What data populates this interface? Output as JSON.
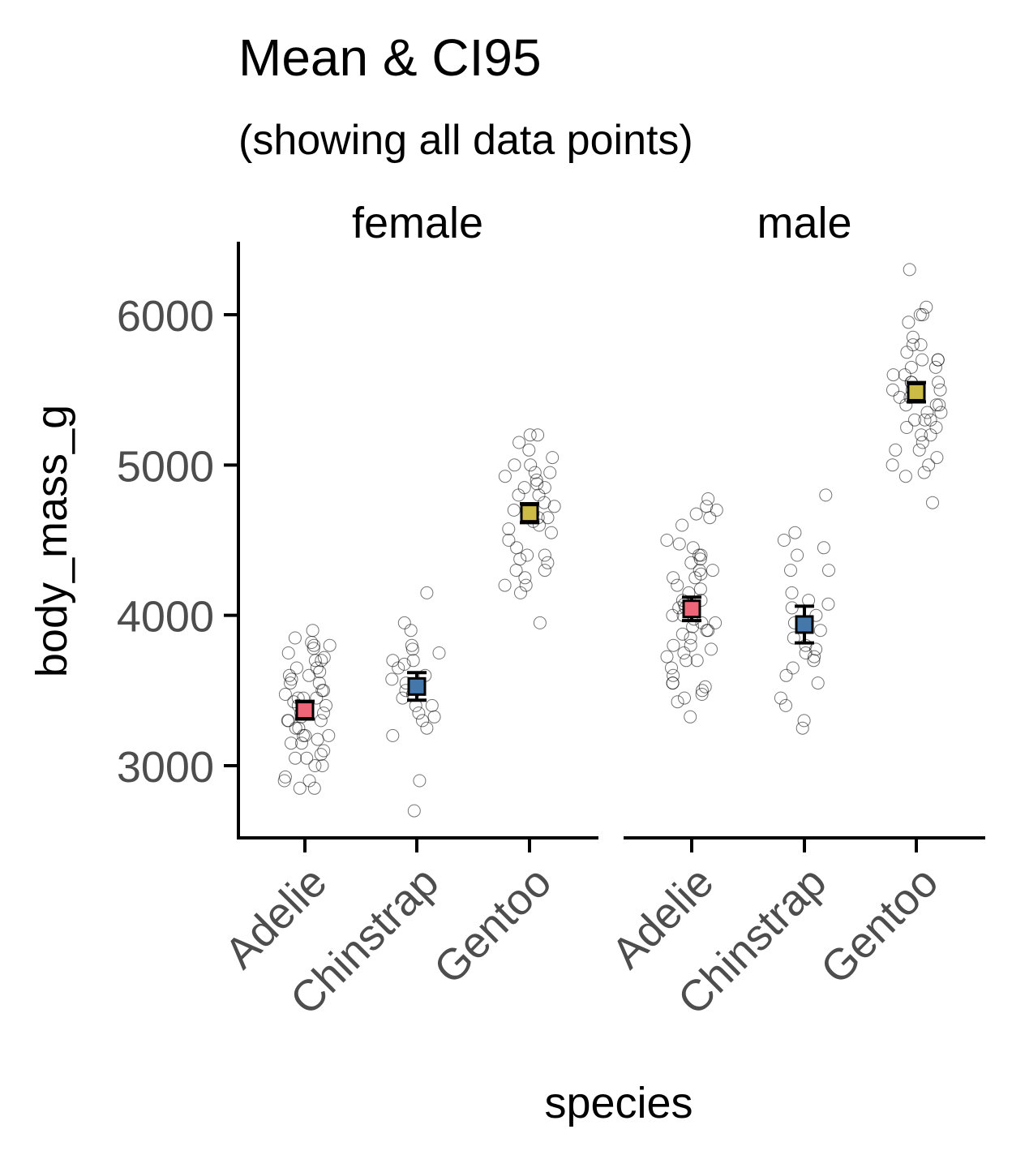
{
  "chart_data": {
    "type": "scatter",
    "title": "Mean & CI95",
    "subtitle": "(showing all data points)",
    "xlabel": "species",
    "ylabel": "body_mass_g",
    "ylim": [
      2500,
      6500
    ],
    "yticks": [
      3000,
      4000,
      5000,
      6000
    ],
    "categories": [
      "Adelie",
      "Chinstrap",
      "Gentoo"
    ],
    "category_colors": {
      "Adelie": "#ee6677",
      "Chinstrap": "#4477aa",
      "Gentoo": "#ccbb44"
    },
    "grid": false,
    "legend": "none",
    "panels": [
      {
        "facet": "female",
        "summary": [
          {
            "species": "Adelie",
            "mean": 3369,
            "ci_low": 3310,
            "ci_high": 3428
          },
          {
            "species": "Chinstrap",
            "mean": 3527,
            "ci_low": 3436,
            "ci_high": 3619
          },
          {
            "species": "Gentoo",
            "mean": 4680,
            "ci_low": 4617,
            "ci_high": 4743
          }
        ],
        "points": {
          "Adelie": [
            3900,
            3850,
            3820,
            3800,
            3800,
            3780,
            3750,
            3720,
            3700,
            3700,
            3650,
            3650,
            3625,
            3600,
            3600,
            3575,
            3550,
            3550,
            3500,
            3500,
            3475,
            3450,
            3450,
            3450,
            3425,
            3400,
            3400,
            3350,
            3350,
            3325,
            3300,
            3300,
            3300,
            3250,
            3250,
            3200,
            3200,
            3200,
            3175,
            3150,
            3150,
            3100,
            3075,
            3050,
            3050,
            3000,
            3000,
            2925,
            2900,
            2900,
            2850,
            2850
          ],
          "Chinstrap": [
            4150,
            3950,
            3900,
            3800,
            3775,
            3750,
            3700,
            3700,
            3675,
            3650,
            3600,
            3575,
            3550,
            3500,
            3475,
            3450,
            3400,
            3400,
            3350,
            3325,
            3300,
            3250,
            3200,
            2900,
            2700
          ],
          "Gentoo": [
            5200,
            5200,
            5150,
            5100,
            5050,
            5000,
            5000,
            4950,
            4950,
            4925,
            4900,
            4875,
            4850,
            4850,
            4800,
            4800,
            4750,
            4725,
            4700,
            4700,
            4675,
            4650,
            4650,
            4625,
            4600,
            4575,
            4550,
            4500,
            4450,
            4400,
            4400,
            4375,
            4350,
            4300,
            4300,
            4250,
            4200,
            4200,
            4150,
            3950
          ]
        }
      },
      {
        "facet": "male",
        "summary": [
          {
            "species": "Adelie",
            "mean": 4043,
            "ci_low": 3965,
            "ci_high": 4121
          },
          {
            "species": "Chinstrap",
            "mean": 3939,
            "ci_low": 3817,
            "ci_high": 4061
          },
          {
            "species": "Gentoo",
            "mean": 5485,
            "ci_low": 5420,
            "ci_high": 5549
          }
        ],
        "points": {
          "Adelie": [
            4775,
            4725,
            4700,
            4675,
            4650,
            4600,
            4500,
            4475,
            4450,
            4400,
            4400,
            4375,
            4350,
            4300,
            4300,
            4275,
            4250,
            4250,
            4200,
            4175,
            4150,
            4100,
            4100,
            4075,
            4050,
            4050,
            4000,
            4000,
            3975,
            3950,
            3950,
            3925,
            3900,
            3900,
            3875,
            3850,
            3800,
            3800,
            3775,
            3750,
            3725,
            3700,
            3700,
            3650,
            3600,
            3550,
            3550,
            3525,
            3500,
            3475,
            3450,
            3425,
            3325
          ],
          "Chinstrap": [
            4800,
            4550,
            4500,
            4450,
            4400,
            4300,
            4300,
            4150,
            4100,
            4075,
            4050,
            4000,
            3950,
            3900,
            3850,
            3800,
            3775,
            3750,
            3725,
            3700,
            3650,
            3600,
            3550,
            3450,
            3400,
            3300,
            3250
          ],
          "Gentoo": [
            6300,
            6050,
            6000,
            6000,
            5950,
            5850,
            5800,
            5800,
            5750,
            5700,
            5700,
            5700,
            5650,
            5650,
            5600,
            5600,
            5550,
            5550,
            5550,
            5500,
            5500,
            5500,
            5450,
            5450,
            5400,
            5400,
            5400,
            5350,
            5350,
            5300,
            5300,
            5300,
            5250,
            5250,
            5200,
            5200,
            5150,
            5100,
            5100,
            5050,
            5000,
            5000,
            4950,
            4925,
            4750
          ]
        }
      }
    ]
  }
}
